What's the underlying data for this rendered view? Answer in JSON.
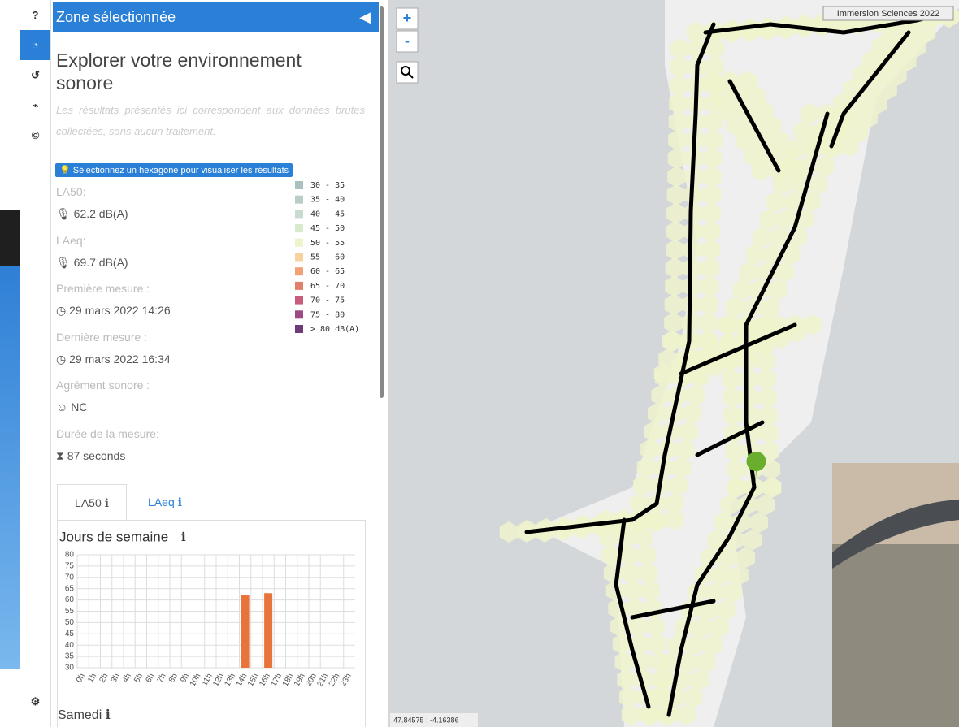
{
  "sidebar": {
    "header": "Zone sélectionnée",
    "title": "Explorer votre environnement sonore",
    "intro": "Les résultats présentés ici correspondent aux données brutes collectées, sans aucun traitement.",
    "hint": "Sélectionnez un hexagone pour visualiser les résultats",
    "fields": [
      {
        "label": "LA50:",
        "value": "62.2 dB(A)"
      },
      {
        "label": "LAeq:",
        "value": "69.7 dB(A)"
      },
      {
        "label": "Première mesure :",
        "value": "29 mars 2022 14:26"
      },
      {
        "label": "Dernière mesure :",
        "value": "29 mars 2022 16:34"
      },
      {
        "label": "Agrément sonore :",
        "value": "NC"
      },
      {
        "label": "Durée de la mesure:",
        "value": "87 seconds"
      }
    ],
    "tabs": [
      "LA50",
      "LAeq"
    ],
    "next_section": "Samedi"
  },
  "legend": [
    {
      "label": "30 - 35",
      "color": "#a9c1c1"
    },
    {
      "label": "35 - 40",
      "color": "#b9cdc9"
    },
    {
      "label": "40 - 45",
      "color": "#c9dccf"
    },
    {
      "label": "45 - 50",
      "color": "#d9e9cb"
    },
    {
      "label": "50 - 55",
      "color": "#eef3cd"
    },
    {
      "label": "55 - 60",
      "color": "#f6d39c"
    },
    {
      "label": "60 - 65",
      "color": "#f1a377"
    },
    {
      "label": "65 - 70",
      "color": "#e07f6b"
    },
    {
      "label": "70 - 75",
      "color": "#c95c7c"
    },
    {
      "label": "75 - 80",
      "color": "#9b4a84"
    },
    {
      "label": "> 80 dB(A)",
      "color": "#6e3a78"
    }
  ],
  "map": {
    "zoom_in": "+",
    "zoom_out": "-",
    "attribution": "Immersion Sciences 2022",
    "coordinates": "47.84575 ; -4.16386"
  },
  "chart_data": {
    "type": "bar",
    "title": "Jours de semaine",
    "color": "#e8743b",
    "categories": [
      "0h",
      "1h",
      "2h",
      "3h",
      "4h",
      "5h",
      "6h",
      "7h",
      "8h",
      "9h",
      "10h",
      "11h",
      "12h",
      "13h",
      "14h",
      "15h",
      "16h",
      "17h",
      "18h",
      "19h",
      "20h",
      "21h",
      "22h",
      "23h"
    ],
    "values": [
      null,
      null,
      null,
      null,
      null,
      null,
      null,
      null,
      null,
      null,
      null,
      null,
      null,
      null,
      62,
      null,
      63,
      null,
      null,
      null,
      null,
      null,
      null,
      null
    ],
    "ylim": [
      30,
      80
    ],
    "yticks": [
      30,
      35,
      40,
      45,
      50,
      55,
      60,
      65,
      70,
      75,
      80
    ],
    "grid": true
  }
}
